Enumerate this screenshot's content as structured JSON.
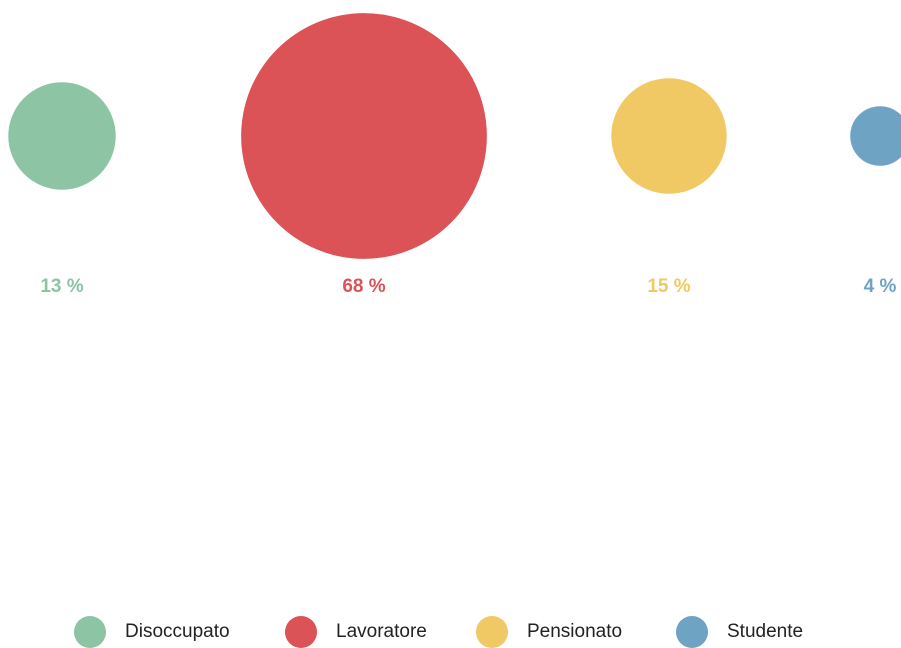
{
  "chart_data": {
    "type": "bubble",
    "categories": [
      "Disoccupato",
      "Lavoratore",
      "Pensionato",
      "Studente"
    ],
    "values": [
      13,
      68,
      15,
      4
    ],
    "value_labels": [
      "13 %",
      "68 %",
      "15 %",
      "4 %"
    ],
    "colors": [
      "#8cc4a4",
      "#db5257",
      "#f0c964",
      "#6fa3c4"
    ],
    "legend": "bottom"
  }
}
